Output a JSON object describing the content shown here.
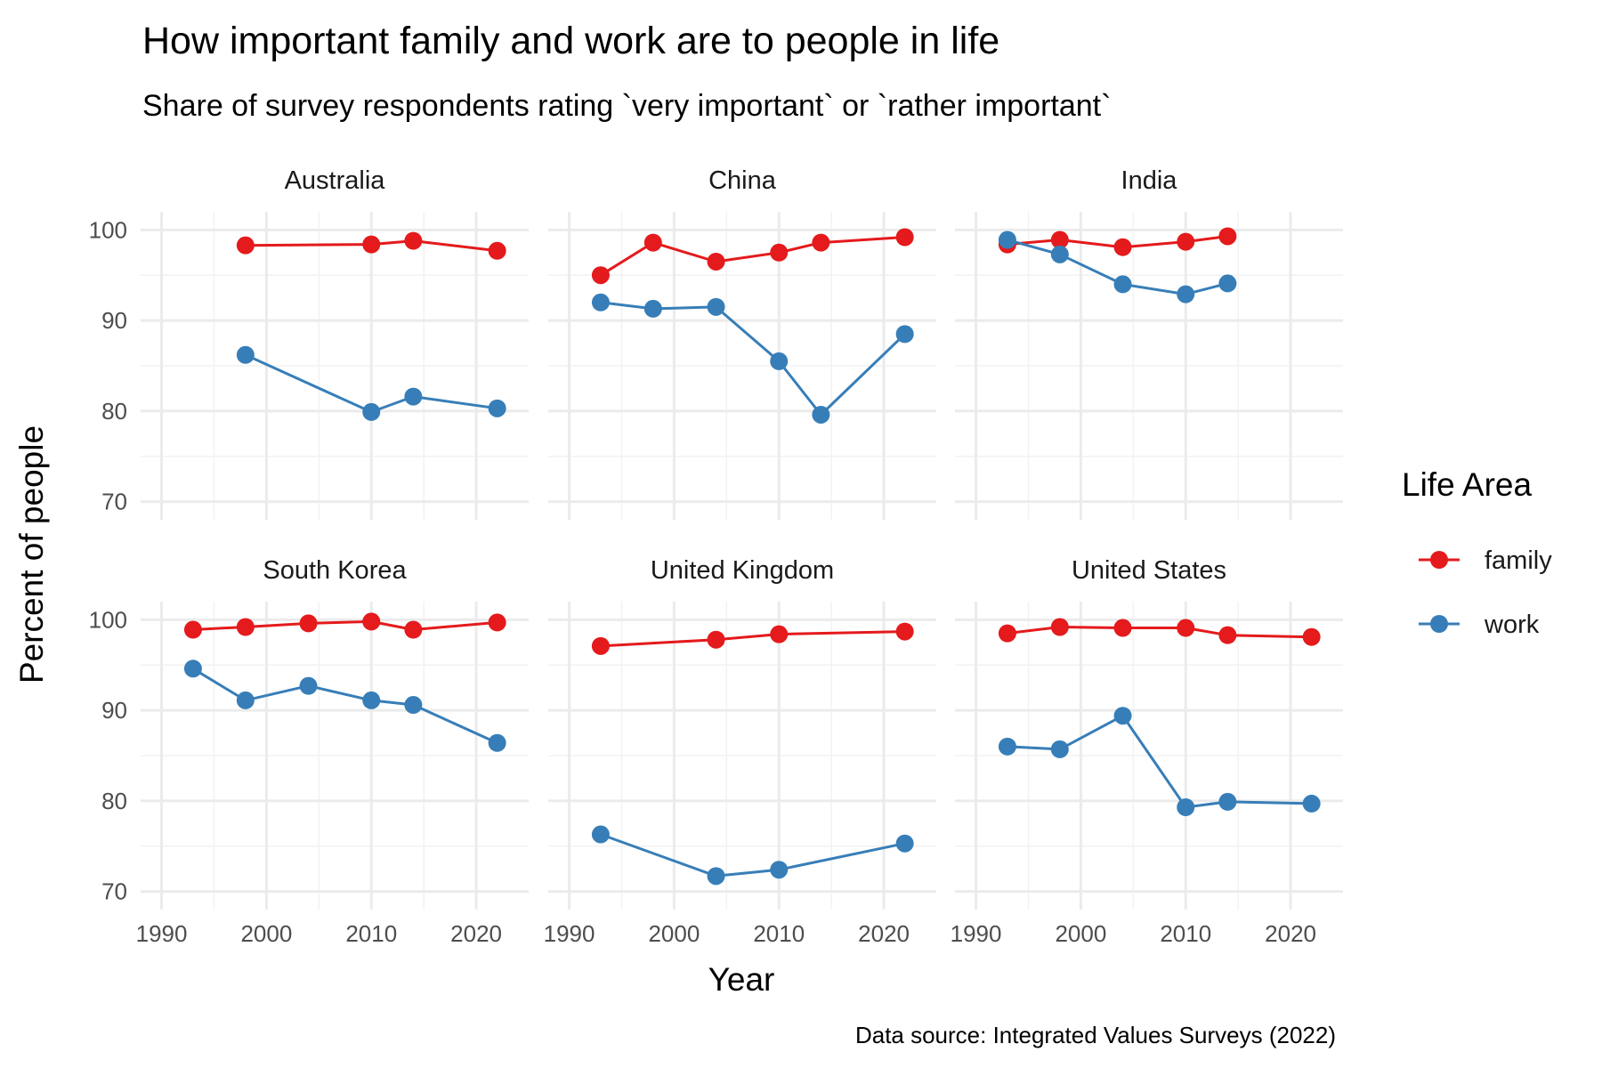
{
  "chart_data": {
    "type": "line",
    "title": "How important family and work are to people in life",
    "subtitle": "Share of survey respondents rating `very important` or `rather important`",
    "xlabel": "Year",
    "ylabel": "Percent of people",
    "caption": "Data source: Integrated Values Surveys (2022)",
    "xlim": [
      1988,
      2025
    ],
    "ylim": [
      68,
      102
    ],
    "x_ticks": [
      1990,
      2000,
      2010,
      2020
    ],
    "y_ticks": [
      70,
      80,
      90,
      100
    ],
    "grid": true,
    "legend": {
      "title": "Life Area",
      "position": "right",
      "entries": [
        {
          "name": "family",
          "color": "#e41a1c"
        },
        {
          "name": "work",
          "color": "#377eb8"
        }
      ]
    },
    "facets": [
      {
        "name": "Australia",
        "series": [
          {
            "name": "family",
            "x": [
              1998,
              2010,
              2014,
              2022
            ],
            "y": [
              98.3,
              98.4,
              98.8,
              97.7
            ]
          },
          {
            "name": "work",
            "x": [
              1998,
              2010,
              2014,
              2022
            ],
            "y": [
              86.2,
              79.9,
              81.6,
              80.3
            ]
          }
        ]
      },
      {
        "name": "China",
        "series": [
          {
            "name": "family",
            "x": [
              1993,
              1998,
              2004,
              2010,
              2014,
              2022
            ],
            "y": [
              95.0,
              98.6,
              96.5,
              97.5,
              98.6,
              99.2
            ]
          },
          {
            "name": "work",
            "x": [
              1993,
              1998,
              2004,
              2010,
              2014,
              2022
            ],
            "y": [
              92.0,
              91.3,
              91.5,
              85.5,
              79.6,
              88.5
            ]
          }
        ]
      },
      {
        "name": "India",
        "series": [
          {
            "name": "family",
            "x": [
              1993,
              1998,
              2004,
              2010,
              2014
            ],
            "y": [
              98.4,
              98.9,
              98.1,
              98.7,
              99.3
            ]
          },
          {
            "name": "work",
            "x": [
              1993,
              1998,
              2004,
              2010,
              2014
            ],
            "y": [
              98.9,
              97.3,
              94.0,
              92.9,
              94.1
            ]
          }
        ]
      },
      {
        "name": "South Korea",
        "series": [
          {
            "name": "family",
            "x": [
              1993,
              1998,
              2004,
              2010,
              2014,
              2022
            ],
            "y": [
              98.9,
              99.2,
              99.6,
              99.8,
              98.9,
              99.7
            ]
          },
          {
            "name": "work",
            "x": [
              1993,
              1998,
              2004,
              2010,
              2014,
              2022
            ],
            "y": [
              94.6,
              91.1,
              92.7,
              91.1,
              90.6,
              86.4
            ]
          }
        ]
      },
      {
        "name": "United Kingdom",
        "series": [
          {
            "name": "family",
            "x": [
              1993,
              2004,
              2010,
              2022
            ],
            "y": [
              97.1,
              97.8,
              98.4,
              98.7
            ]
          },
          {
            "name": "work",
            "x": [
              1993,
              2004,
              2010,
              2022
            ],
            "y": [
              76.3,
              71.7,
              72.4,
              75.3
            ]
          }
        ]
      },
      {
        "name": "United States",
        "series": [
          {
            "name": "family",
            "x": [
              1993,
              1998,
              2004,
              2010,
              2014,
              2022
            ],
            "y": [
              98.5,
              99.2,
              99.1,
              99.1,
              98.3,
              98.1
            ]
          },
          {
            "name": "work",
            "x": [
              1993,
              1998,
              2004,
              2010,
              2014,
              2022
            ],
            "y": [
              86.0,
              85.7,
              89.4,
              79.3,
              79.9,
              79.7
            ]
          }
        ]
      }
    ]
  }
}
